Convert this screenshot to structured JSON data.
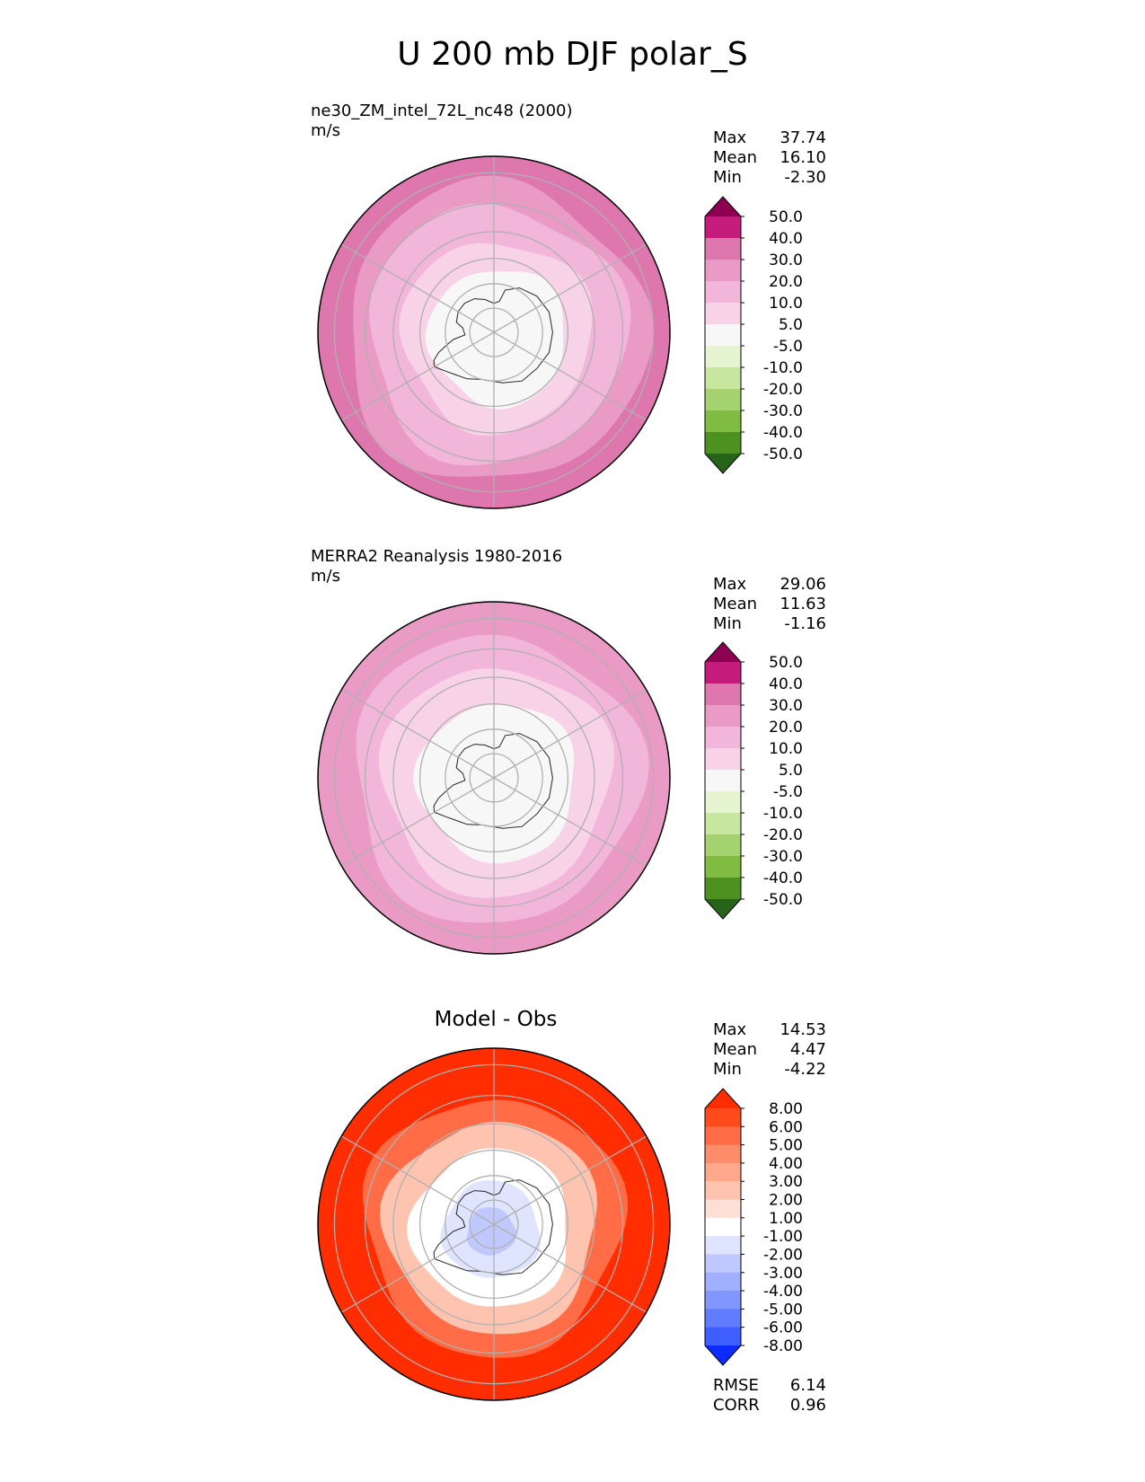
{
  "figure": {
    "suptitle": "U 200 mb DJF polar_S"
  },
  "chart_data": [
    {
      "type": "heatmap",
      "projection": "south-polar-stereographic",
      "title": "ne30_ZM_intel_72L_nc48 (2000)",
      "units": "m/s",
      "stats": [
        {
          "label": "Max",
          "value": "37.74"
        },
        {
          "label": "Mean",
          "value": "16.10"
        },
        {
          "label": "Min",
          "value": "-2.30"
        }
      ],
      "colorbar": {
        "extend": "both",
        "tick_labels": [
          "50.0",
          "40.0",
          "30.0",
          "20.0",
          "10.0",
          "5.0",
          "-5.0",
          "-10.0",
          "-20.0",
          "-30.0",
          "-40.0",
          "-50.0"
        ],
        "colors": [
          "#8e0152",
          "#c51b7d",
          "#de77ae",
          "#e99bc6",
          "#f1b6da",
          "#f8d3e8",
          "#f7f7f7",
          "#e6f5d0",
          "#c7e6a0",
          "#a3d26e",
          "#7fbc41",
          "#4d9221",
          "#276419"
        ]
      },
      "field_levels": [
        {
          "lat": -28,
          "value": 35
        },
        {
          "lat": -33,
          "value": 25
        },
        {
          "lat": -40,
          "value": 15
        },
        {
          "lat": -52,
          "value": 7
        },
        {
          "lat": -62,
          "value": 0
        }
      ]
    },
    {
      "type": "heatmap",
      "projection": "south-polar-stereographic",
      "title": "MERRA2 Reanalysis 1980-2016",
      "units": "m/s",
      "stats": [
        {
          "label": "Max",
          "value": "29.06"
        },
        {
          "label": "Mean",
          "value": "11.63"
        },
        {
          "label": "Min",
          "value": "-1.16"
        }
      ],
      "colorbar": {
        "extend": "both",
        "tick_labels": [
          "50.0",
          "40.0",
          "30.0",
          "20.0",
          "10.0",
          "5.0",
          "-5.0",
          "-10.0",
          "-20.0",
          "-30.0",
          "-40.0",
          "-50.0"
        ],
        "colors": [
          "#8e0152",
          "#c51b7d",
          "#de77ae",
          "#e99bc6",
          "#f1b6da",
          "#f8d3e8",
          "#f7f7f7",
          "#e6f5d0",
          "#c7e6a0",
          "#a3d26e",
          "#7fbc41",
          "#4d9221",
          "#276419"
        ]
      },
      "field_levels": [
        {
          "lat": -28,
          "value": 25
        },
        {
          "lat": -35,
          "value": 15
        },
        {
          "lat": -45,
          "value": 7
        },
        {
          "lat": -58,
          "value": 0
        }
      ]
    },
    {
      "type": "heatmap",
      "projection": "south-polar-stereographic",
      "title": "Model - Obs",
      "units": "",
      "stats": [
        {
          "label": "Max",
          "value": "14.53"
        },
        {
          "label": "Mean",
          "value": "4.47"
        },
        {
          "label": "Min",
          "value": "-4.22"
        }
      ],
      "metrics": [
        {
          "label": "RMSE",
          "value": "6.14"
        },
        {
          "label": "CORR",
          "value": "0.96"
        }
      ],
      "colorbar": {
        "extend": "both",
        "tick_labels": [
          "8.00",
          "6.00",
          "5.00",
          "4.00",
          "3.00",
          "2.00",
          "1.00",
          "-1.00",
          "-2.00",
          "-3.00",
          "-4.00",
          "-5.00",
          "-6.00",
          "-8.00"
        ],
        "colors": [
          "#ff2d00",
          "#ff4a1c",
          "#ff6c46",
          "#ff8c6a",
          "#ffa88c",
          "#ffc4b0",
          "#ffdfd6",
          "#ffffff",
          "#dfe4ff",
          "#c0c9ff",
          "#a0afff",
          "#8196ff",
          "#617dff",
          "#3f5eff",
          "#0b2bff"
        ]
      },
      "field_levels": [
        {
          "lat": -28,
          "value": 8
        },
        {
          "lat": -40,
          "value": 5
        },
        {
          "lat": -48,
          "value": 2
        },
        {
          "lat": -58,
          "value": 0
        },
        {
          "lat": -70,
          "value": -2
        },
        {
          "lat": -80,
          "value": -3
        }
      ]
    }
  ]
}
